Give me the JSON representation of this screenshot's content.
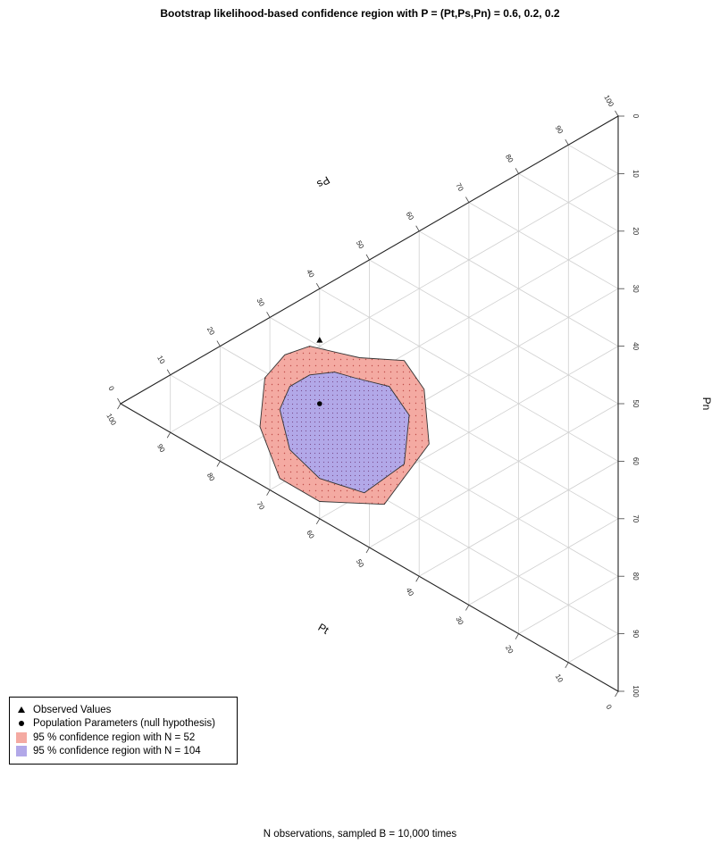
{
  "chart_data": {
    "type": "ternary",
    "title": "Bootstrap likelihood-based confidence region with P = (Pt,Ps,Pn) =  0.6, 0.2, 0.2",
    "xlabel": "N observations, sampled B = 10,000 times",
    "axes": {
      "bottom_left_label": "Pt",
      "left_edge_label": "Ps",
      "right_label": "Pn"
    },
    "ticks": {
      "left_edge": [
        "0",
        "10",
        "20",
        "30",
        "40",
        "50",
        "60",
        "70",
        "80",
        "90",
        "100"
      ],
      "right_edge": [
        "0",
        "10",
        "20",
        "30",
        "40",
        "50",
        "60",
        "70",
        "80",
        "90",
        "100"
      ],
      "lower_edge": [
        "100",
        "90",
        "80",
        "70",
        "60",
        "50",
        "40",
        "30",
        "20",
        "10",
        "0"
      ]
    },
    "grid": true,
    "series": [
      {
        "name": "Observed Values",
        "symbol": "triangle",
        "color": "#000000",
        "point": {
          "Pt": 0.6,
          "Ps": 0.31,
          "Pn": 0.09
        }
      },
      {
        "name": "Population Parameters (null hypothesis)",
        "symbol": "dot",
        "color": "#000000",
        "point": {
          "Pt": 0.6,
          "Ps": 0.2,
          "Pn": 0.2
        }
      },
      {
        "name": "95 % confidence region with N = 52",
        "color": "#f4aaa2",
        "region": [
          [
            0.52,
            0.32,
            0.16
          ],
          [
            0.43,
            0.36,
            0.21
          ],
          [
            0.39,
            0.33,
            0.28
          ],
          [
            0.38,
            0.24,
            0.38
          ],
          [
            0.47,
            0.09,
            0.44
          ],
          [
            0.6,
            0.03,
            0.37
          ],
          [
            0.68,
            0.03,
            0.29
          ],
          [
            0.72,
            0.1,
            0.18
          ],
          [
            0.71,
            0.19,
            0.1
          ],
          [
            0.67,
            0.25,
            0.08
          ],
          [
            0.62,
            0.29,
            0.09
          ]
        ]
      },
      {
        "name": "95 % confidence region with N = 104",
        "color": "#b2a8e8",
        "region": [
          [
            0.53,
            0.28,
            0.19
          ],
          [
            0.46,
            0.3,
            0.24
          ],
          [
            0.42,
            0.27,
            0.31
          ],
          [
            0.43,
            0.18,
            0.39
          ],
          [
            0.51,
            0.09,
            0.4
          ],
          [
            0.6,
            0.07,
            0.33
          ],
          [
            0.66,
            0.09,
            0.25
          ],
          [
            0.68,
            0.15,
            0.17
          ],
          [
            0.66,
            0.2,
            0.14
          ],
          [
            0.62,
            0.24,
            0.14
          ],
          [
            0.57,
            0.27,
            0.16
          ]
        ]
      }
    ],
    "legend_position": "bottom-left"
  }
}
